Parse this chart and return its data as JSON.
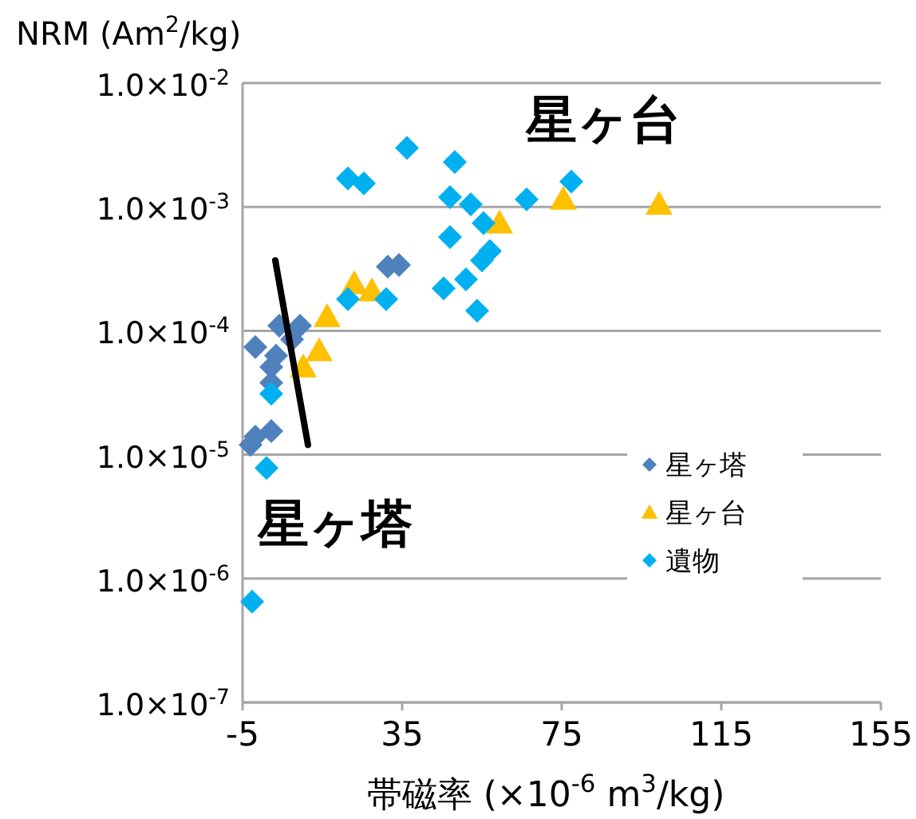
{
  "chart_data": {
    "type": "scatter",
    "xlabel": "帯磁率 (×10$^{-6}$ m$^{3}$/kg)",
    "ylabel": "NRM (Am$^{2}$/kg)",
    "log": "y",
    "xlim": [
      -5,
      155
    ],
    "xticks": [
      -5,
      35,
      75,
      115,
      155
    ],
    "ylim": [
      1e-07,
      0.01
    ],
    "yticks": [
      {
        "value": 1e-07,
        "label": "1.0×10$^{-7}$"
      },
      {
        "value": 1e-06,
        "label": "1.0×10$^{-6}$"
      },
      {
        "value": 1e-05,
        "label": "1.0×10$^{-5}$"
      },
      {
        "value": 0.0001,
        "label": "1.0×10$^{-4}$"
      },
      {
        "value": 0.001,
        "label": "1.0×10$^{-3}$"
      },
      {
        "value": 0.01,
        "label": "1.0×10$^{-2}$"
      }
    ],
    "grid": "y",
    "legend": "right",
    "series": [
      {
        "name": "星ヶ塔",
        "color": "#4f81bd",
        "marker": "diamond",
        "x": [
          -1.8,
          4.2,
          9.4,
          2.2,
          3.4,
          2.2,
          -1.8,
          2.2,
          -3,
          31.4,
          34.2,
          7.4
        ],
        "values": [
          7.4e-05,
          0.00011,
          0.00011,
          5.1e-05,
          6.3e-05,
          3.8e-05,
          1.4e-05,
          1.55e-05,
          1.2e-05,
          0.00033,
          0.00034,
          8.5e-05
        ]
      },
      {
        "name": "星ヶ台",
        "color": "#ffc000",
        "marker": "triangle",
        "x": [
          16.2,
          14.2,
          10.2,
          23,
          27.4,
          59.4,
          75.4,
          99.4
        ],
        "values": [
          0.00013,
          6.9e-05,
          5.1e-05,
          0.00024,
          0.00021,
          0.00074,
          0.00115,
          0.00105
        ]
      },
      {
        "name": "遺物",
        "color": "#00b0f0",
        "marker": "diamond",
        "x": [
          2.2,
          1,
          -2.6,
          21.4,
          31,
          21.4,
          25.4,
          36.2,
          48.2,
          47,
          52.2,
          55.4,
          47,
          57,
          55,
          45.4,
          51,
          53.8,
          66.2,
          77.4
        ],
        "values": [
          3.1e-05,
          7.8e-06,
          6.5e-07,
          0.00018,
          0.00018,
          0.0017,
          0.00155,
          0.003,
          0.0023,
          0.0012,
          0.00105,
          0.00074,
          0.00057,
          0.00044,
          0.00037,
          0.00022,
          0.00026,
          0.000145,
          0.00115,
          0.0016
        ]
      },
      {
        "type": "line",
        "color": "#000000",
        "x": [
          3.2,
          11.4
        ],
        "values": [
          0.00037,
          1.2e-05
        ]
      }
    ],
    "annotations": [
      "星ヶ台",
      "星ヶ塔"
    ]
  }
}
